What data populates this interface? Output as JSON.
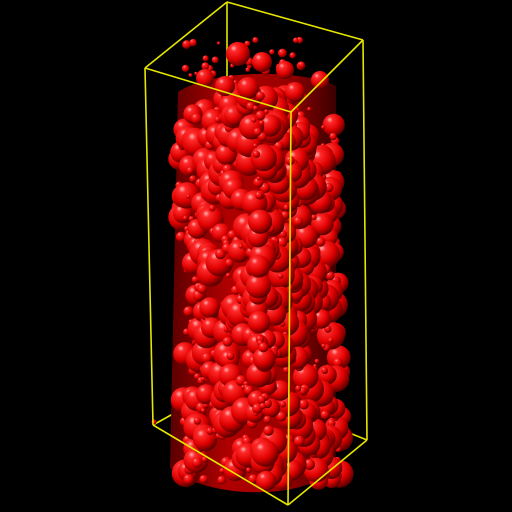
{
  "scene": {
    "subject": "packed-spheres-cylinder",
    "background_color": "#000000",
    "sphere_color": "#dd0000",
    "sphere_highlight_color": "#ffb0b0",
    "sphere_shadow_color": "#4a0000",
    "box_color": "#e6e600"
  }
}
